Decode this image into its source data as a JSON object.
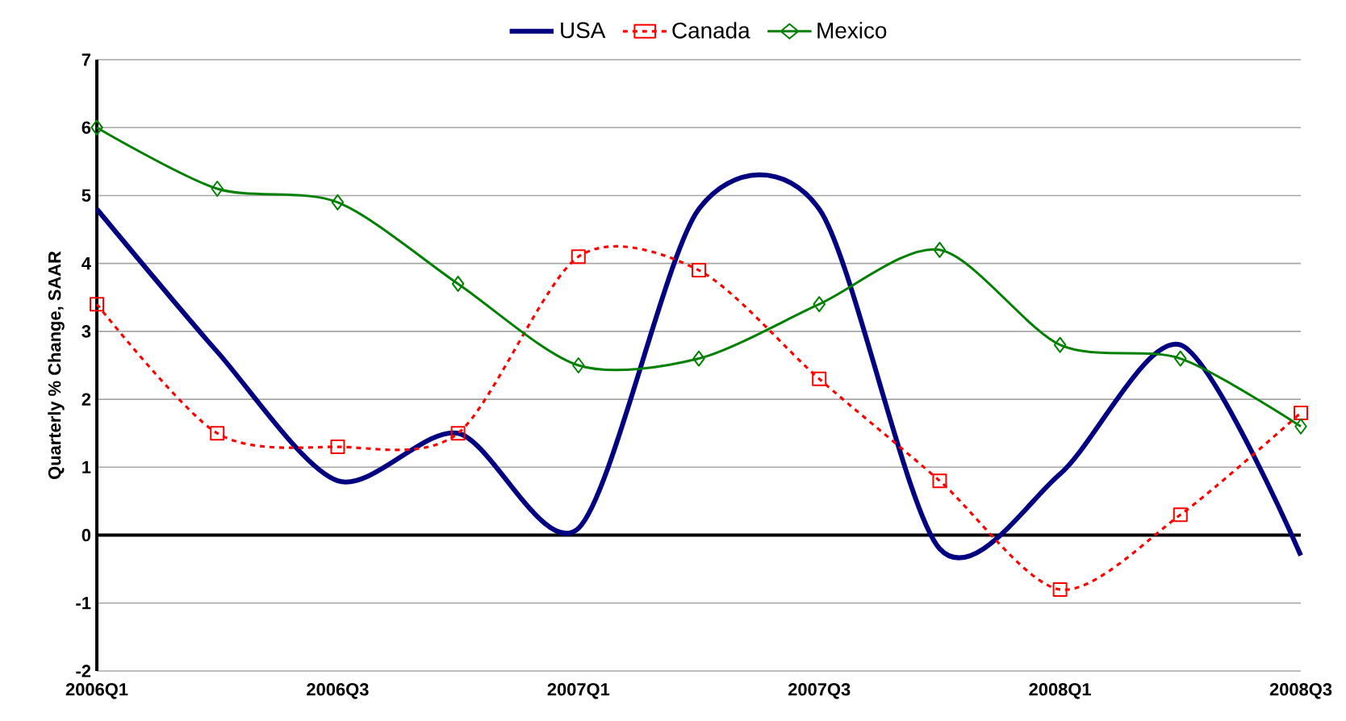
{
  "chart_data": {
    "type": "line",
    "ylabel": "Quarterly % Change, SAAR",
    "categories": [
      "2006Q1",
      null,
      "2006Q3",
      null,
      "2007Q1",
      null,
      "2007Q3",
      null,
      "2008Q1",
      null,
      "2008Q3"
    ],
    "series": [
      {
        "name": "USA",
        "color": "#000080",
        "marker": "none",
        "line_style": "solid",
        "values": [
          4.8,
          2.7,
          0.8,
          1.5,
          0.1,
          4.8,
          4.8,
          -0.2,
          0.9,
          2.8,
          -0.3
        ]
      },
      {
        "name": "Canada",
        "color": "#ff0000",
        "marker": "square",
        "line_style": "dashed",
        "values": [
          3.4,
          1.5,
          1.3,
          1.5,
          4.1,
          3.9,
          2.3,
          0.8,
          -0.8,
          0.3,
          1.8
        ]
      },
      {
        "name": "Mexico",
        "color": "#008000",
        "marker": "diamond",
        "line_style": "solid",
        "values": [
          6.0,
          5.1,
          4.9,
          3.7,
          2.5,
          2.6,
          3.4,
          4.2,
          2.8,
          2.6,
          1.6
        ]
      }
    ],
    "ylim": [
      -2,
      7
    ],
    "yticks": [
      -2,
      -1,
      0,
      1,
      2,
      3,
      4,
      5,
      6,
      7
    ],
    "grid": "y",
    "legend": "top"
  }
}
